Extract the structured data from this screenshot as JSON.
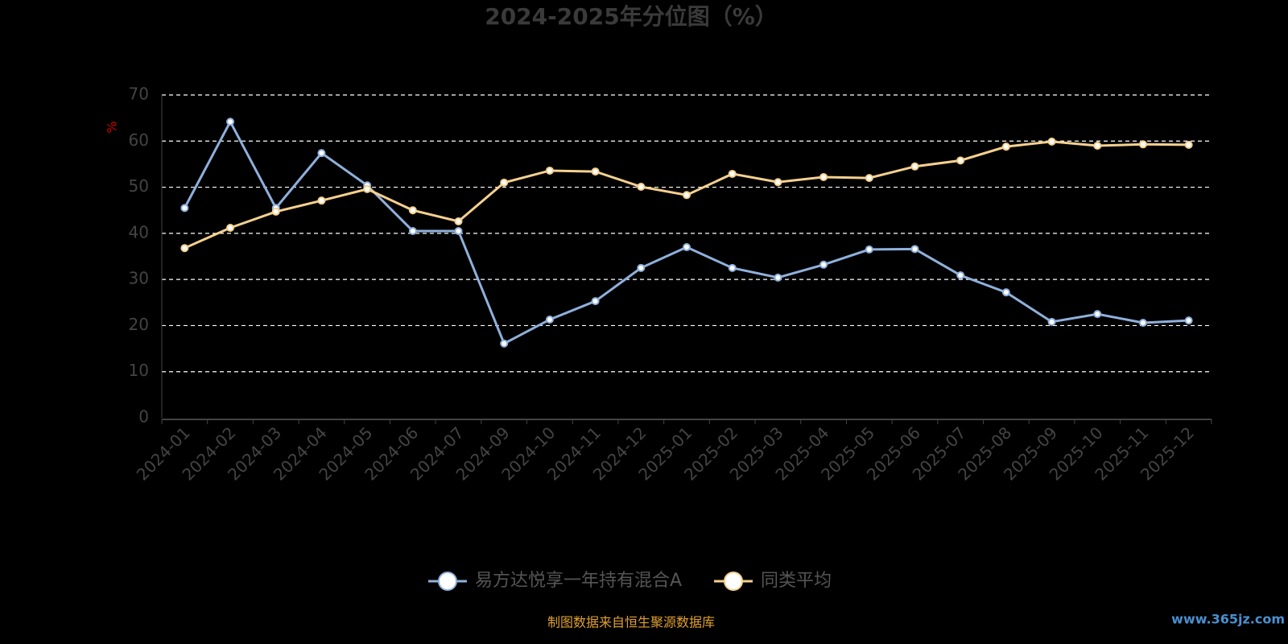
{
  "chart_data": {
    "type": "line",
    "title": "2024-2025年分位图（%）",
    "y_label": "%",
    "categories": [
      "2024-01",
      "2024-02",
      "2024-03",
      "2024-04",
      "2024-05",
      "2024-06",
      "2024-07",
      "2024-09",
      "2024-10",
      "2024-11",
      "2024-12",
      "2025-01",
      "2025-02",
      "2025-03",
      "2025-04",
      "2025-05",
      "2025-06",
      "2025-07",
      "2025-08",
      "2025-09",
      "2025-10",
      "2025-11",
      "2025-12"
    ],
    "series": [
      {
        "name": "易方达悦享一年持有混合A",
        "color": "#8fb0dc",
        "values": [
          45.5,
          64.2,
          45.5,
          57.4,
          50.4,
          40.5,
          40.5,
          16.1,
          21.3,
          25.3,
          32.5,
          37.0,
          32.5,
          30.4,
          33.2,
          36.5,
          36.6,
          30.9,
          27.2,
          20.8,
          22.5,
          20.6,
          21.1
        ]
      },
      {
        "name": "同类平均",
        "color": "#f5d08f",
        "values": [
          36.8,
          41.2,
          44.7,
          47.1,
          49.6,
          45.0,
          42.6,
          51.0,
          53.6,
          53.4,
          50.1,
          48.3,
          52.9,
          51.1,
          52.2,
          52.0,
          54.5,
          55.8,
          58.8,
          59.9,
          59.0,
          59.3,
          59.2
        ]
      }
    ],
    "ylim": [
      0,
      70
    ],
    "yticks": [
      0,
      10,
      20,
      30,
      40,
      50,
      60,
      70
    ],
    "grid": true,
    "source": "制图数据来自恒生聚源数据库",
    "watermark": "www.365jz.com"
  }
}
